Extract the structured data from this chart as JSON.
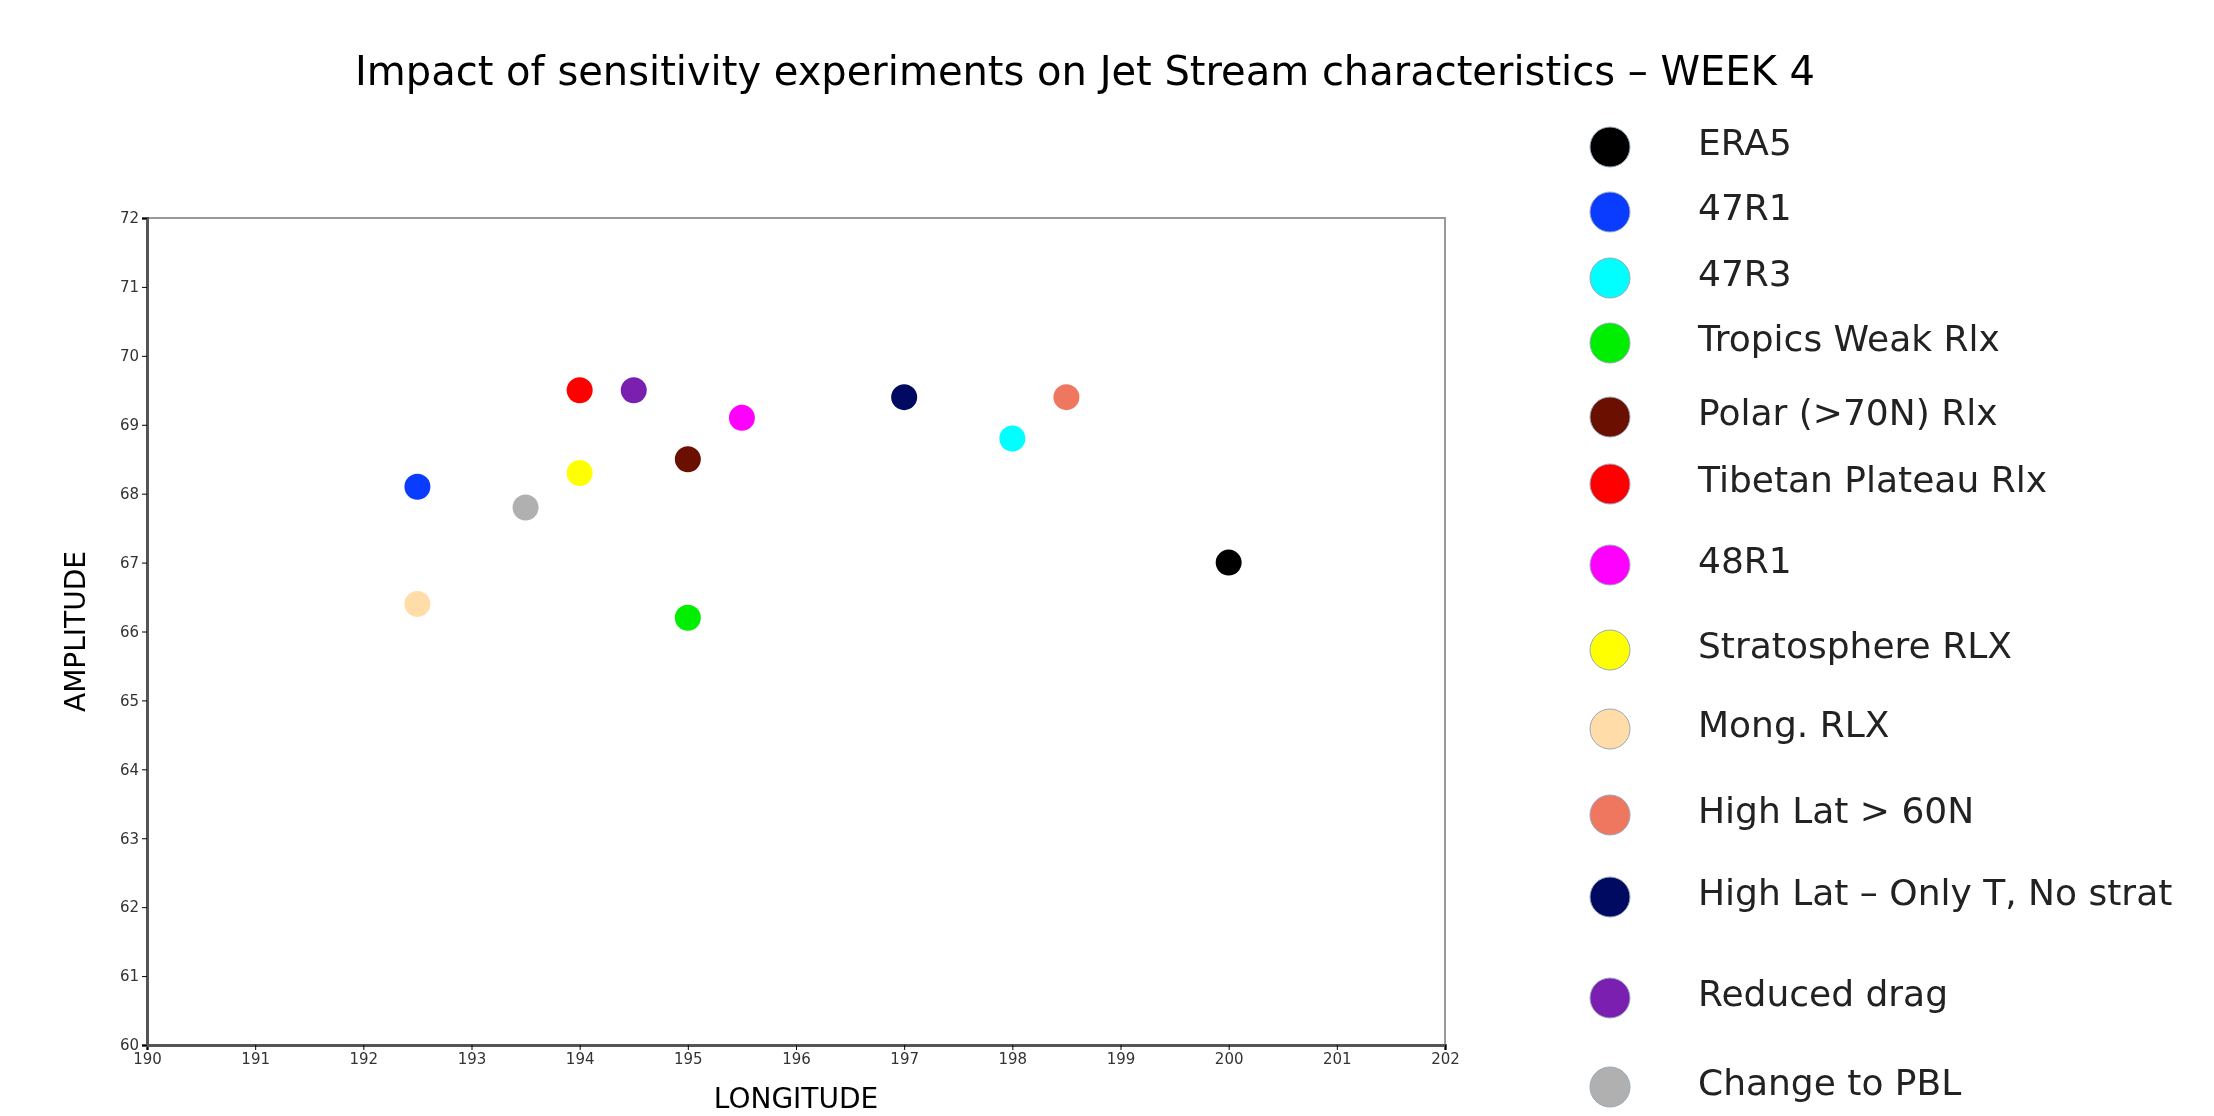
{
  "chart_data": {
    "type": "scatter",
    "title": "Impact of sensitivity experiments on Jet Stream characteristics – WEEK 4",
    "xlabel": "LONGITUDE",
    "ylabel": "AMPLITUDE",
    "xlim": [
      190,
      202
    ],
    "xticks": [
      190,
      191,
      192,
      193,
      194,
      195,
      196,
      197,
      198,
      199,
      200,
      201,
      202
    ],
    "ylim": [
      60,
      72
    ],
    "yticks": [
      60,
      61,
      62,
      63,
      64,
      65,
      66,
      67,
      68,
      69,
      70,
      71,
      72
    ],
    "grid": false,
    "legend": "right",
    "marker": "circle",
    "series": [
      {
        "name": "ERA5",
        "color": "#000000",
        "x": [
          200
        ],
        "values": [
          67.0
        ]
      },
      {
        "name": "47R1",
        "color": "#0a3cff",
        "x": [
          192.5
        ],
        "values": [
          68.1
        ]
      },
      {
        "name": "47R3",
        "color": "#00ffff",
        "x": [
          198
        ],
        "values": [
          68.8
        ]
      },
      {
        "name": "Tropics Weak Rlx",
        "color": "#00ee00",
        "x": [
          195
        ],
        "values": [
          66.2
        ]
      },
      {
        "name": "Polar (>70N) Rlx",
        "color": "#6b1000",
        "x": [
          195
        ],
        "values": [
          68.5
        ]
      },
      {
        "name": "Tibetan Plateau Rlx",
        "color": "#ff0000",
        "x": [
          194
        ],
        "values": [
          69.5
        ]
      },
      {
        "name": "48R1",
        "color": "#ff00ff",
        "x": [
          195.5
        ],
        "values": [
          69.1
        ]
      },
      {
        "name": "Stratosphere RLX",
        "color": "#ffff00",
        "x": [
          194
        ],
        "values": [
          68.3
        ]
      },
      {
        "name": "Mong.   RLX",
        "color": "#ffdca8",
        "x": [
          192.5
        ],
        "values": [
          66.4
        ]
      },
      {
        "name": "High Lat > 60N",
        "color": "#ef7760",
        "x": [
          198.5
        ],
        "values": [
          69.4
        ]
      },
      {
        "name": "High Lat – Only T, No strat",
        "color": "#000a60",
        "x": [
          197
        ],
        "values": [
          69.4
        ]
      },
      {
        "name": "Reduced drag",
        "color": "#7a1fb0",
        "x": [
          194.5
        ],
        "values": [
          69.5
        ]
      },
      {
        "name": "Change to PBL",
        "color": "#b0b0b0",
        "x": [
          193.5
        ],
        "values": [
          67.8
        ]
      }
    ]
  }
}
